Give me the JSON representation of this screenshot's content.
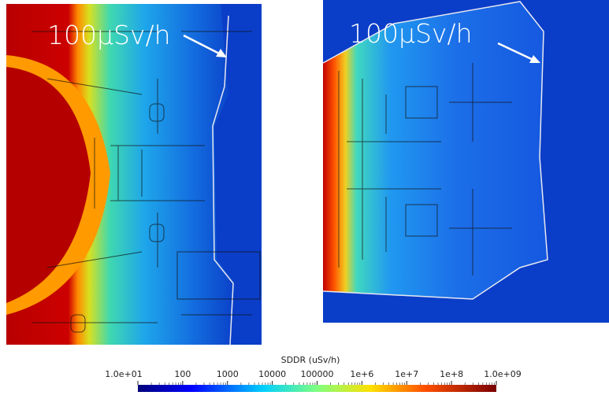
{
  "panels": [
    {
      "annotation": "100µSv/h"
    },
    {
      "annotation": "100µSv/h"
    }
  ],
  "colorbar": {
    "title": "SDDR (uSv/h)",
    "ticks": [
      "1.0e+01",
      "100",
      "1000",
      "10000",
      "100000",
      "1e+6",
      "1e+7",
      "1e+8",
      "1.0e+09"
    ]
  }
}
